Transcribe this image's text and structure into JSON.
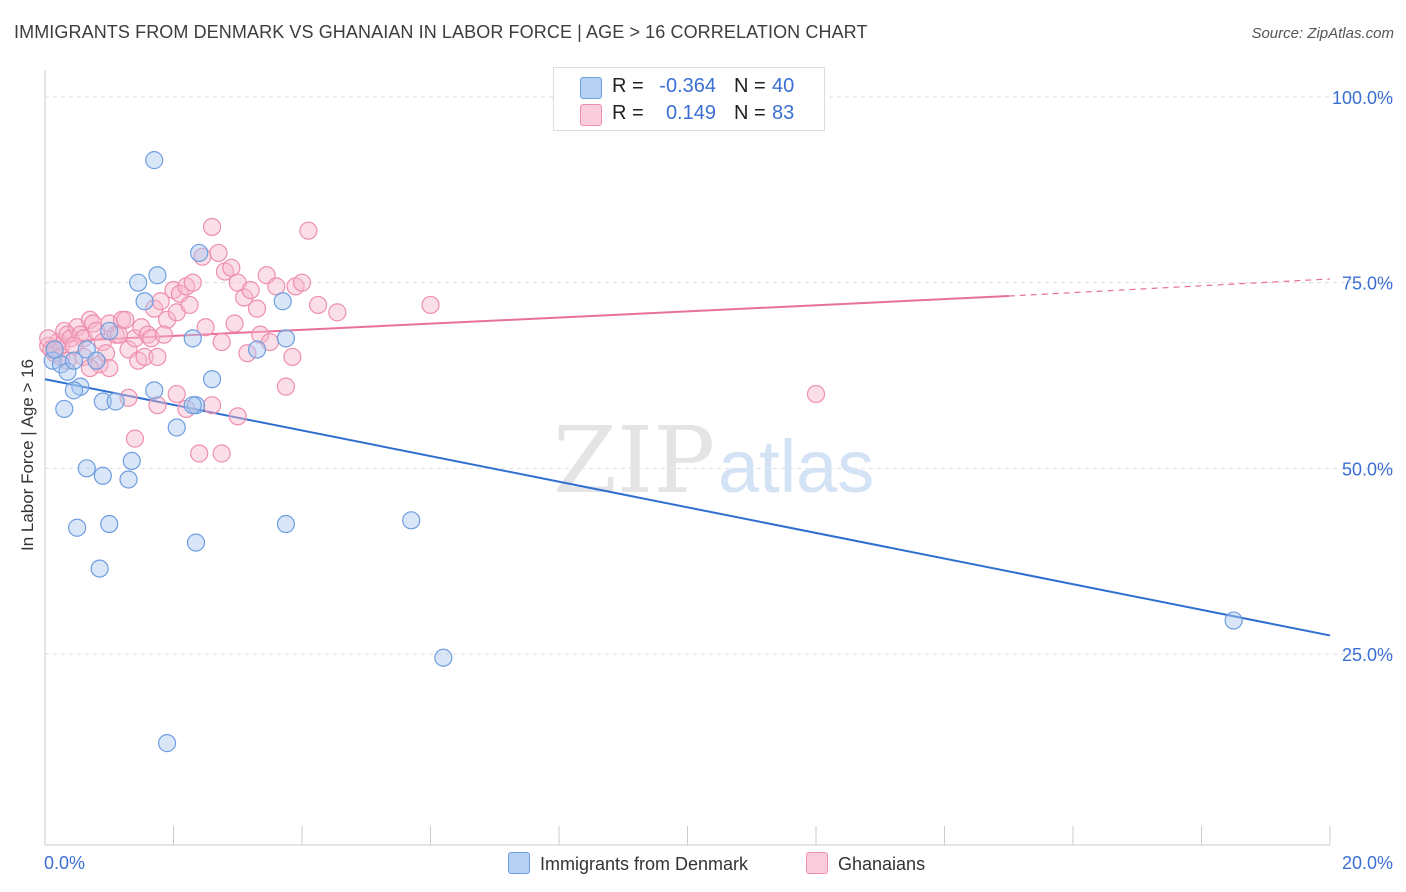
{
  "title": "IMMIGRANTS FROM DENMARK VS GHANAIAN IN LABOR FORCE | AGE > 16 CORRELATION CHART",
  "source": "Source: ZipAtlas.com",
  "watermark": {
    "zip": "ZIP",
    "atlas": "atlas"
  },
  "legend": {
    "r_label": "R =",
    "n_label": "N =",
    "rows": [
      {
        "r_value": "-0.364",
        "n_value": "40"
      },
      {
        "r_value": "0.149",
        "n_value": "83"
      }
    ]
  },
  "colors": {
    "blue_fill": "#a9c7f0",
    "blue_stroke": "#6f9ee0",
    "blue_line": "#2f6fd0",
    "pink_fill": "#f7b8cc",
    "pink_stroke": "#ee8fae",
    "pink_line": "#e8709a",
    "axis_text": "#3b6fd4",
    "grid": "#dddddd"
  },
  "chart_data": {
    "type": "scatter",
    "title": "IMMIGRANTS FROM DENMARK VS GHANAIAN IN LABOR FORCE | AGE > 16 CORRELATION CHART",
    "xlabel": "",
    "ylabel": "In Labor Force | Age > 16",
    "xlim": [
      0,
      20
    ],
    "ylim": [
      0,
      100
    ],
    "x_tick_labels": [
      "0.0%",
      "20.0%"
    ],
    "y_ticks": [
      25,
      50,
      75,
      100
    ],
    "y_tick_labels": [
      "25.0%",
      "50.0%",
      "75.0%",
      "100.0%"
    ],
    "grid": true,
    "series": [
      {
        "name": "Immigrants from Denmark",
        "color": "#a9c7f0",
        "points": [
          [
            0.12,
            64.5
          ],
          [
            0.25,
            64.0
          ],
          [
            0.35,
            63.0
          ],
          [
            0.45,
            64.5
          ],
          [
            0.65,
            66.0
          ],
          [
            0.3,
            58.0
          ],
          [
            0.8,
            64.5
          ],
          [
            0.9,
            59.0
          ],
          [
            1.1,
            59.0
          ],
          [
            0.55,
            61.0
          ],
          [
            0.45,
            60.5
          ],
          [
            0.15,
            66.0
          ],
          [
            1.7,
            91.5
          ],
          [
            1.45,
            75.0
          ],
          [
            2.4,
            79.0
          ],
          [
            1.55,
            72.5
          ],
          [
            1.75,
            76.0
          ],
          [
            1.0,
            68.5
          ],
          [
            3.7,
            72.5
          ],
          [
            3.75,
            67.5
          ],
          [
            2.3,
            67.5
          ],
          [
            2.6,
            62.0
          ],
          [
            3.3,
            66.0
          ],
          [
            1.35,
            51.0
          ],
          [
            1.3,
            48.5
          ],
          [
            0.9,
            49.0
          ],
          [
            0.65,
            50.0
          ],
          [
            1.7,
            60.5
          ],
          [
            2.35,
            58.5
          ],
          [
            2.05,
            55.5
          ],
          [
            1.0,
            42.5
          ],
          [
            0.5,
            42.0
          ],
          [
            2.35,
            40.0
          ],
          [
            3.75,
            42.5
          ],
          [
            0.85,
            36.5
          ],
          [
            5.7,
            43.0
          ],
          [
            6.2,
            24.5
          ],
          [
            1.9,
            13.0
          ],
          [
            18.5,
            29.5
          ],
          [
            2.3,
            58.5
          ]
        ]
      },
      {
        "name": "Ghanaians",
        "color": "#f7b8cc",
        "points": [
          [
            0.05,
            66.5
          ],
          [
            0.1,
            66.0
          ],
          [
            0.15,
            65.5
          ],
          [
            0.2,
            67.0
          ],
          [
            0.25,
            66.5
          ],
          [
            0.3,
            68.5
          ],
          [
            0.35,
            68.0
          ],
          [
            0.4,
            67.5
          ],
          [
            0.5,
            69.0
          ],
          [
            0.55,
            68.0
          ],
          [
            0.6,
            67.5
          ],
          [
            0.7,
            70.0
          ],
          [
            0.75,
            69.5
          ],
          [
            0.8,
            68.5
          ],
          [
            0.9,
            67.0
          ],
          [
            1.0,
            69.5
          ],
          [
            1.1,
            68.0
          ],
          [
            1.2,
            70.0
          ],
          [
            1.3,
            66.0
          ],
          [
            1.4,
            67.5
          ],
          [
            1.5,
            69.0
          ],
          [
            1.6,
            68.0
          ],
          [
            1.7,
            71.5
          ],
          [
            1.8,
            72.5
          ],
          [
            1.9,
            70.0
          ],
          [
            2.0,
            74.0
          ],
          [
            2.1,
            73.5
          ],
          [
            2.2,
            74.5
          ],
          [
            2.3,
            75.0
          ],
          [
            2.45,
            78.5
          ],
          [
            2.6,
            82.5
          ],
          [
            2.7,
            79.0
          ],
          [
            2.8,
            76.5
          ],
          [
            2.9,
            77.0
          ],
          [
            3.0,
            75.0
          ],
          [
            3.1,
            73.0
          ],
          [
            3.2,
            74.0
          ],
          [
            3.3,
            71.5
          ],
          [
            3.45,
            76.0
          ],
          [
            3.6,
            74.5
          ],
          [
            3.9,
            74.5
          ],
          [
            4.0,
            75.0
          ],
          [
            4.1,
            82.0
          ],
          [
            4.25,
            72.0
          ],
          [
            4.55,
            71.0
          ],
          [
            0.45,
            66.5
          ],
          [
            0.6,
            65.0
          ],
          [
            0.85,
            64.0
          ],
          [
            0.95,
            65.5
          ],
          [
            1.15,
            68.0
          ],
          [
            1.25,
            70.0
          ],
          [
            1.45,
            64.5
          ],
          [
            1.55,
            65.0
          ],
          [
            1.65,
            67.5
          ],
          [
            1.75,
            65.0
          ],
          [
            1.85,
            68.0
          ],
          [
            2.05,
            71.0
          ],
          [
            2.25,
            72.0
          ],
          [
            2.5,
            69.0
          ],
          [
            2.75,
            67.0
          ],
          [
            2.95,
            69.5
          ],
          [
            3.15,
            65.5
          ],
          [
            3.35,
            68.0
          ],
          [
            3.5,
            67.0
          ],
          [
            3.75,
            61.0
          ],
          [
            3.85,
            65.0
          ],
          [
            1.3,
            59.5
          ],
          [
            1.75,
            58.5
          ],
          [
            2.05,
            60.0
          ],
          [
            2.2,
            58.0
          ],
          [
            2.6,
            58.5
          ],
          [
            3.0,
            57.0
          ],
          [
            2.4,
            52.0
          ],
          [
            2.75,
            52.0
          ],
          [
            1.4,
            54.0
          ],
          [
            0.05,
            67.5
          ],
          [
            0.15,
            66.0
          ],
          [
            0.25,
            65.0
          ],
          [
            0.35,
            64.5
          ],
          [
            0.7,
            63.5
          ],
          [
            1.0,
            63.5
          ],
          [
            6.0,
            72.0
          ],
          [
            12.0,
            60.0
          ]
        ]
      }
    ],
    "trendlines": [
      {
        "series": "Immigrants from Denmark",
        "x": [
          0,
          20
        ],
        "y": [
          62.0,
          27.5
        ]
      },
      {
        "series": "Ghanaians",
        "x": [
          0,
          15
        ],
        "y": [
          67.0,
          73.2
        ],
        "dashed_to": [
          20,
          75.5
        ]
      }
    ]
  }
}
